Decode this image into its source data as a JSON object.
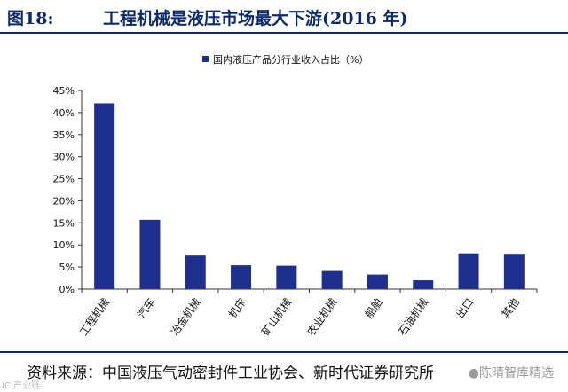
{
  "header": {
    "figure_label": "图18:",
    "title": "工程机械是液压市场最大下游(2016 年)"
  },
  "chart_data": {
    "type": "bar",
    "categories": [
      "工程机械",
      "汽车",
      "冶金机械",
      "机床",
      "矿山机械",
      "农业机械",
      "船舶",
      "石油机械",
      "出口",
      "其他"
    ],
    "series": [
      {
        "name": "国内液压产品分行业收入占比（%）",
        "values": [
          42.1,
          15.7,
          7.6,
          5.4,
          5.3,
          4.1,
          3.3,
          2.0,
          8.1,
          8.0
        ]
      }
    ],
    "title": "",
    "xlabel": "",
    "ylabel": "",
    "ylim": [
      0,
      45
    ],
    "yticks": [
      "0%",
      "5%",
      "10%",
      "15%",
      "20%",
      "25%",
      "30%",
      "35%",
      "40%",
      "45%"
    ],
    "grid": false,
    "legend_position": "top-right",
    "bar_color": "#1f2f8e"
  },
  "footer": {
    "source": "资料来源：中国液压气动密封件工业协会、新时代证券研究所",
    "watermark_right": "●陈晴智库精选",
    "watermark_left": "IC 产业链"
  }
}
